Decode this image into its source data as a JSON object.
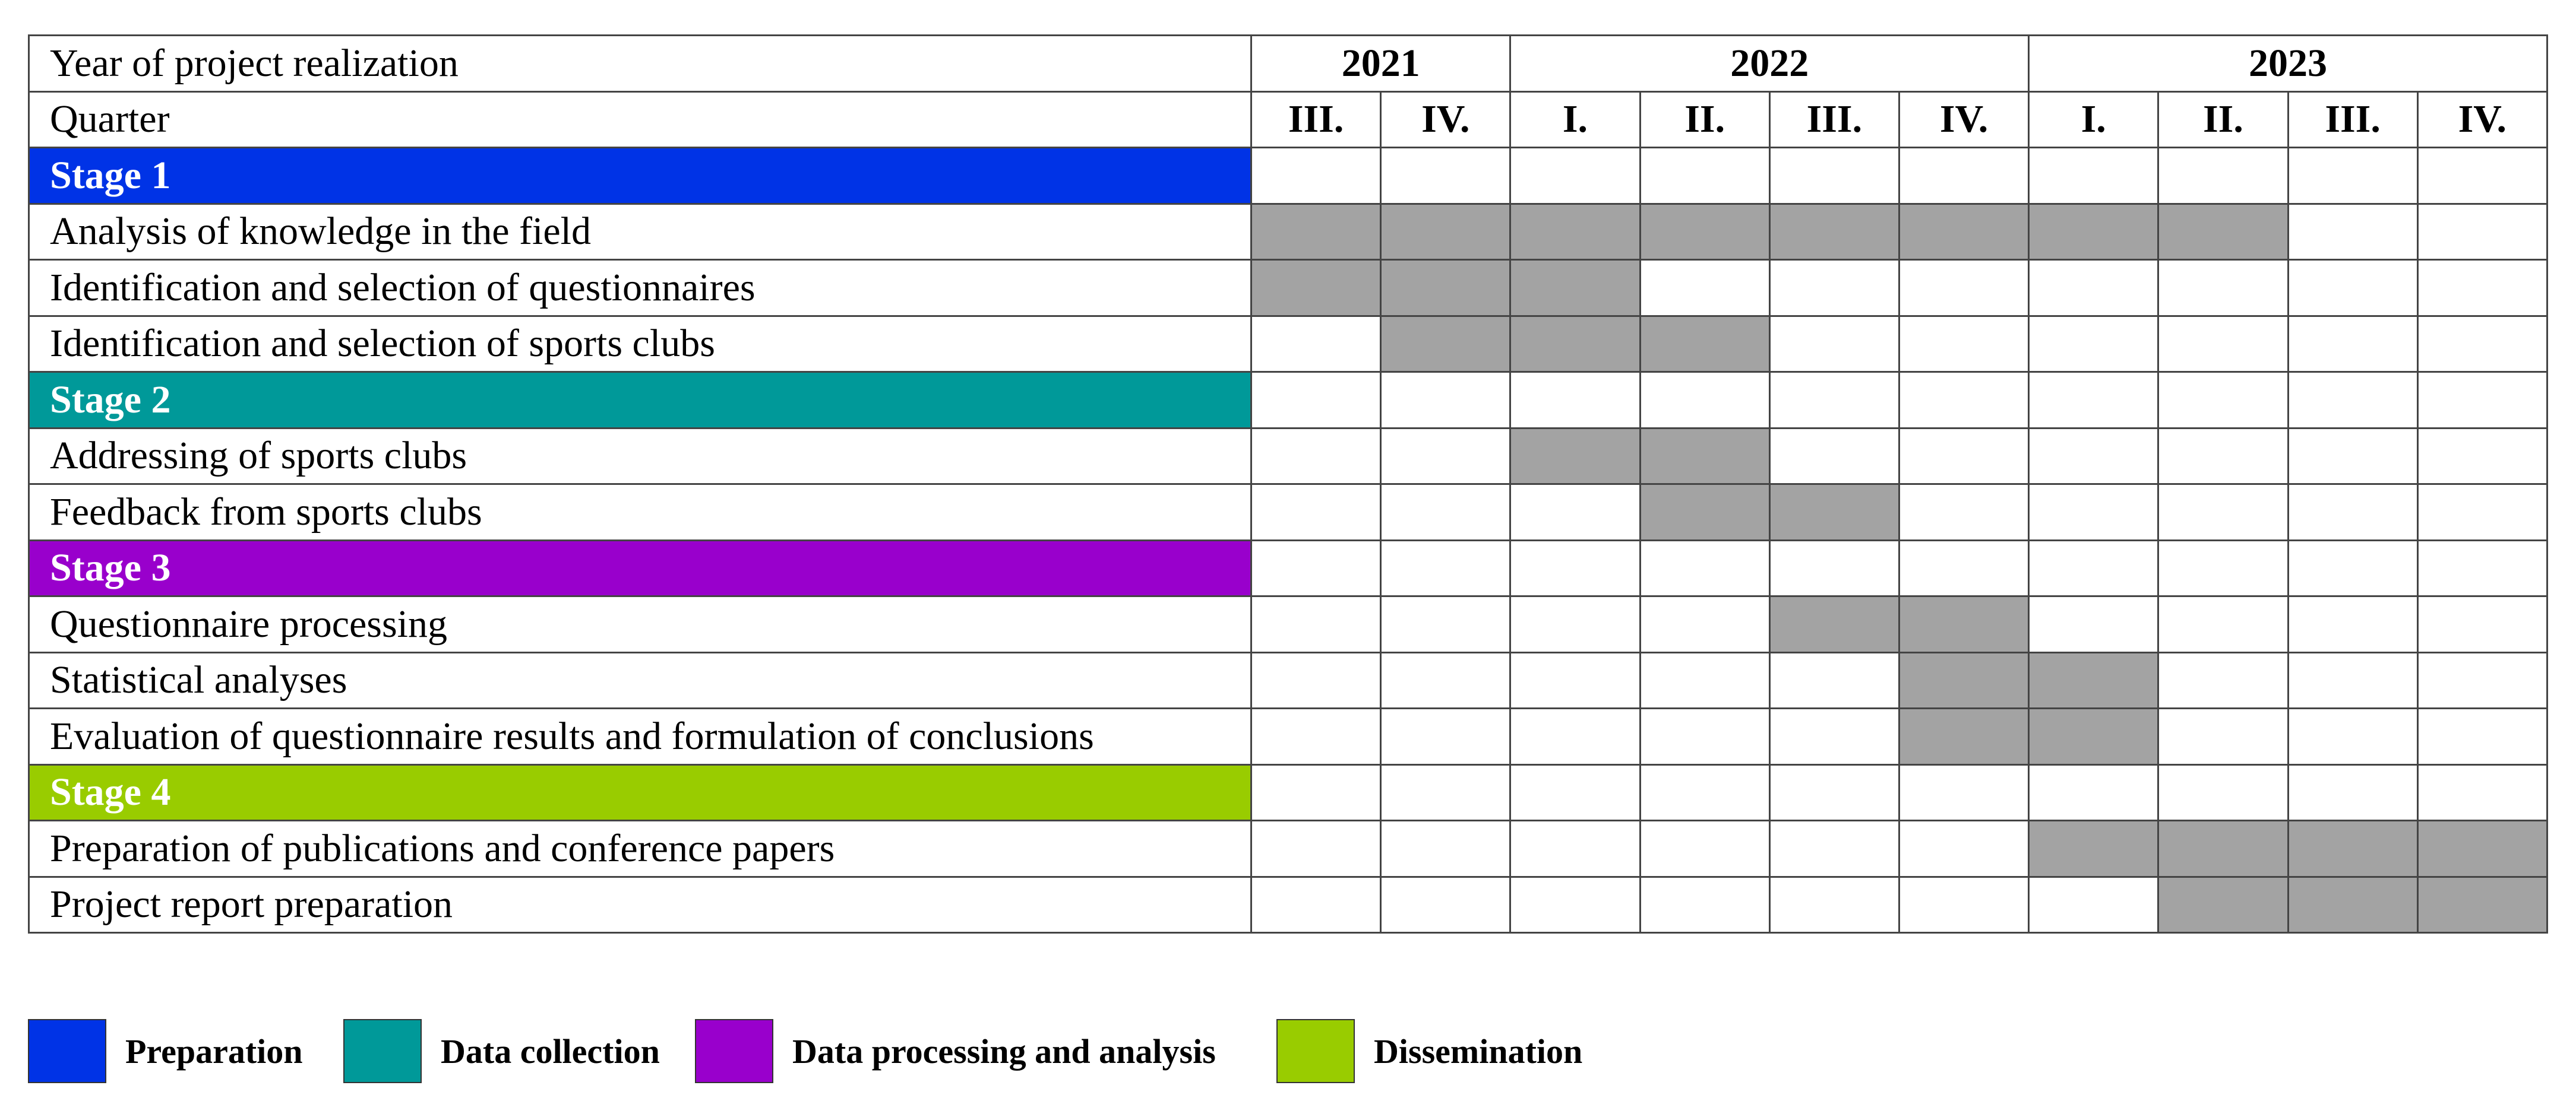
{
  "chart_data": {
    "type": "table",
    "header": {
      "year_label": "Year of project realization",
      "quarter_label": "Quarter"
    },
    "years": [
      {
        "label": "2021",
        "span": 2
      },
      {
        "label": "2022",
        "span": 4
      },
      {
        "label": "2023",
        "span": 4
      }
    ],
    "quarters": [
      "III.",
      "IV.",
      "I.",
      "II.",
      "III.",
      "IV.",
      "I.",
      "II.",
      "III.",
      "IV."
    ],
    "rows": [
      {
        "kind": "stage",
        "label": "Stage 1",
        "color": "#0033e6",
        "bars": []
      },
      {
        "kind": "task",
        "label": "Analysis of knowledge in the field",
        "bars": [
          0,
          1,
          2,
          3,
          4,
          5,
          6,
          7
        ]
      },
      {
        "kind": "task",
        "label": "Identification and selection of questionnaires",
        "bars": [
          0,
          1,
          2
        ]
      },
      {
        "kind": "task",
        "label": "Identification and selection of sports clubs",
        "bars": [
          1,
          2,
          3
        ]
      },
      {
        "kind": "stage",
        "label": "Stage 2",
        "color": "#009999",
        "bars": []
      },
      {
        "kind": "task",
        "label": "Addressing of sports clubs",
        "bars": [
          2,
          3
        ]
      },
      {
        "kind": "task",
        "label": "Feedback from sports clubs",
        "bars": [
          3,
          4
        ]
      },
      {
        "kind": "stage",
        "label": "Stage 3",
        "color": "#9900cc",
        "bars": []
      },
      {
        "kind": "task",
        "label": "Questionnaire processing",
        "bars": [
          4,
          5
        ]
      },
      {
        "kind": "task",
        "label": "Statistical analyses",
        "bars": [
          5,
          6
        ]
      },
      {
        "kind": "task",
        "label": "Evaluation of questionnaire results and formulation of conclusions",
        "bars": [
          5,
          6
        ]
      },
      {
        "kind": "stage",
        "label": "Stage 4",
        "color": "#99cc00",
        "bars": []
      },
      {
        "kind": "task",
        "label": "Preparation of publications and conference papers",
        "bars": [
          6,
          7,
          8,
          9
        ]
      },
      {
        "kind": "task",
        "label": "Project report preparation",
        "bars": [
          7,
          8,
          9
        ]
      }
    ],
    "bar_color": "#a3a3a3",
    "legend": [
      {
        "label": "Preparation",
        "color": "#0033e6"
      },
      {
        "label": "Data collection",
        "color": "#009999"
      },
      {
        "label": "Data processing and analysis",
        "color": "#9900cc"
      },
      {
        "label": "Dissemination",
        "color": "#99cc00"
      }
    ]
  }
}
